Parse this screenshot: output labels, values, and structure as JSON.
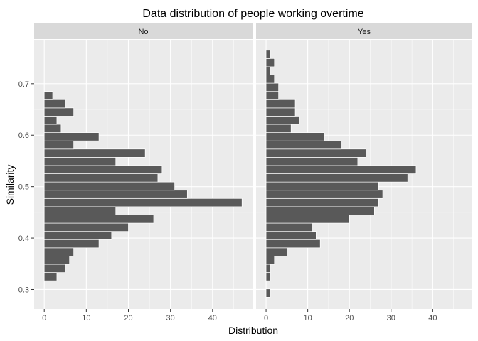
{
  "chart_data": {
    "type": "bar",
    "orientation": "horizontal",
    "title": "Data distribution of people working overtime",
    "xlabel": "Distribution",
    "ylabel": "Similarity",
    "xlim": [
      -2.4,
      49.5
    ],
    "ylim": [
      0.262,
      0.784
    ],
    "x_ticks": [
      0,
      10,
      20,
      30,
      40
    ],
    "y_ticks": [
      0.3,
      0.4,
      0.5,
      0.6,
      0.7
    ],
    "x_tick_labels": [
      "0",
      "10",
      "20",
      "30",
      "40"
    ],
    "y_tick_labels": [
      "0.3",
      "0.4",
      "0.5",
      "0.6",
      "0.7"
    ],
    "bin_width": 0.016,
    "grid": true,
    "colors": {
      "bar": "#595959",
      "panel": "#ebebeb",
      "strip": "#d9d9d9",
      "grid": "#ffffff"
    },
    "panels": [
      {
        "label": "No",
        "bins": [
          {
            "y": 0.325,
            "value": 3
          },
          {
            "y": 0.341,
            "value": 5
          },
          {
            "y": 0.357,
            "value": 6
          },
          {
            "y": 0.373,
            "value": 7
          },
          {
            "y": 0.389,
            "value": 13
          },
          {
            "y": 0.405,
            "value": 16
          },
          {
            "y": 0.421,
            "value": 20
          },
          {
            "y": 0.437,
            "value": 26
          },
          {
            "y": 0.453,
            "value": 17
          },
          {
            "y": 0.469,
            "value": 47
          },
          {
            "y": 0.485,
            "value": 34
          },
          {
            "y": 0.501,
            "value": 31
          },
          {
            "y": 0.517,
            "value": 27
          },
          {
            "y": 0.533,
            "value": 28
          },
          {
            "y": 0.549,
            "value": 17
          },
          {
            "y": 0.565,
            "value": 24
          },
          {
            "y": 0.581,
            "value": 7
          },
          {
            "y": 0.597,
            "value": 13
          },
          {
            "y": 0.613,
            "value": 4
          },
          {
            "y": 0.629,
            "value": 3
          },
          {
            "y": 0.645,
            "value": 7
          },
          {
            "y": 0.661,
            "value": 5
          },
          {
            "y": 0.677,
            "value": 2
          }
        ]
      },
      {
        "label": "Yes",
        "bins": [
          {
            "y": 0.293,
            "value": 1
          },
          {
            "y": 0.309,
            "value": 0
          },
          {
            "y": 0.325,
            "value": 1
          },
          {
            "y": 0.341,
            "value": 1
          },
          {
            "y": 0.357,
            "value": 2
          },
          {
            "y": 0.373,
            "value": 5
          },
          {
            "y": 0.389,
            "value": 13
          },
          {
            "y": 0.405,
            "value": 12
          },
          {
            "y": 0.421,
            "value": 11
          },
          {
            "y": 0.437,
            "value": 20
          },
          {
            "y": 0.453,
            "value": 26
          },
          {
            "y": 0.469,
            "value": 27
          },
          {
            "y": 0.485,
            "value": 28
          },
          {
            "y": 0.501,
            "value": 27
          },
          {
            "y": 0.517,
            "value": 34
          },
          {
            "y": 0.533,
            "value": 36
          },
          {
            "y": 0.549,
            "value": 22
          },
          {
            "y": 0.565,
            "value": 24
          },
          {
            "y": 0.581,
            "value": 18
          },
          {
            "y": 0.597,
            "value": 14
          },
          {
            "y": 0.613,
            "value": 6
          },
          {
            "y": 0.629,
            "value": 8
          },
          {
            "y": 0.645,
            "value": 7
          },
          {
            "y": 0.661,
            "value": 7
          },
          {
            "y": 0.677,
            "value": 3
          },
          {
            "y": 0.693,
            "value": 3
          },
          {
            "y": 0.709,
            "value": 2
          },
          {
            "y": 0.725,
            "value": 1
          },
          {
            "y": 0.741,
            "value": 2
          },
          {
            "y": 0.757,
            "value": 1
          }
        ]
      }
    ]
  }
}
